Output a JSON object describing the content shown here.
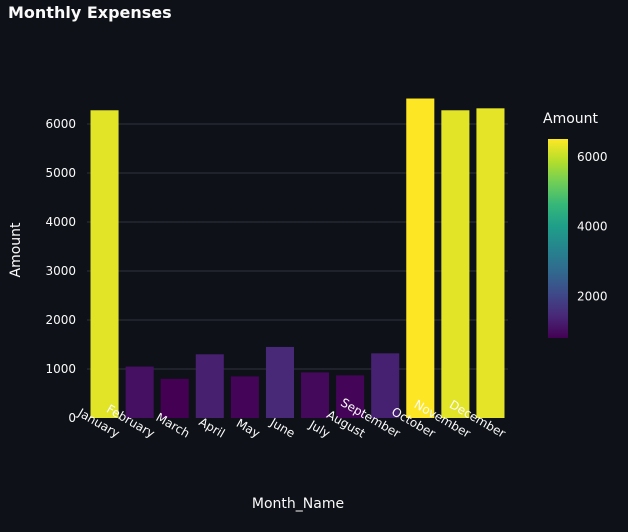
{
  "chart_data": {
    "type": "bar",
    "title": "Monthly Expenses",
    "xlabel": "Month_Name",
    "ylabel": "Amount",
    "categories": [
      "January",
      "February",
      "March",
      "April",
      "May",
      "June",
      "July",
      "August",
      "September",
      "October",
      "November",
      "December"
    ],
    "values": [
      6280,
      1050,
      800,
      1300,
      850,
      1450,
      930,
      870,
      1320,
      6520,
      6280,
      6320
    ],
    "ylim": [
      0,
      6600
    ],
    "yticks": [
      0,
      1000,
      2000,
      3000,
      4000,
      5000,
      6000
    ],
    "grid": true,
    "colorscale": "viridis",
    "colorbar": {
      "title": "Amount",
      "range": [
        800,
        6520
      ],
      "ticks": [
        2000,
        4000,
        6000
      ]
    }
  }
}
